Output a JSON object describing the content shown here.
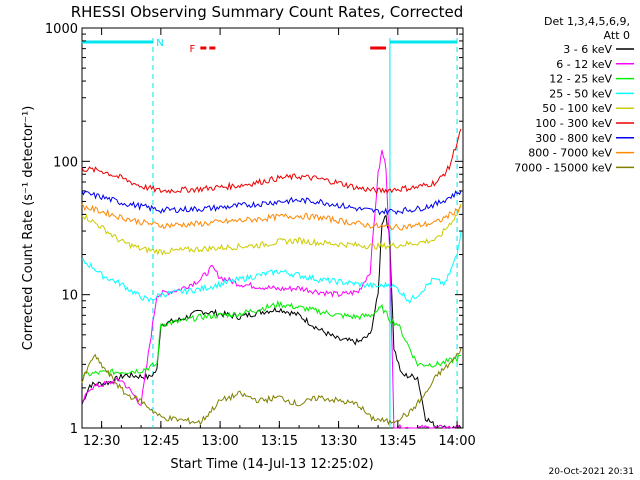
{
  "chart_data": {
    "type": "line",
    "title": "RHESSI Observing Summary Count Rates, Corrected",
    "xlabel": "Start Time (14-Jul-13 12:25:02)",
    "ylabel": "Corrected Count Rate (s⁻¹ detector⁻¹)",
    "xlim": [
      "12:25:02",
      "14:01:30"
    ],
    "ylim": [
      1,
      1000
    ],
    "y_scale": "log",
    "x_ticks": [
      "12:30",
      "12:45",
      "13:00",
      "13:15",
      "13:30",
      "13:45",
      "14:00"
    ],
    "y_ticks": [
      "1",
      "10",
      "100",
      "1000"
    ],
    "legend_title": "Det 1,3,4,5,6,9,\nAtt 0",
    "legend_placement": "right",
    "timestamp": "20-Oct-2021 20:31",
    "flags": [
      {
        "label": "N",
        "color": "#00e5ee",
        "segments": [
          [
            "12:25",
            "12:43"
          ],
          [
            "13:43",
            "14:00"
          ]
        ]
      },
      {
        "label": "F",
        "color": "#ee0000",
        "segments": [
          [
            "12:55",
            "12:59"
          ],
          [
            "13:38",
            "13:42"
          ]
        ]
      }
    ],
    "vlines": [
      "12:43",
      "13:43",
      "14:00"
    ],
    "series": [
      {
        "name": "3 - 6 keV",
        "color": "#000000",
        "points": [
          [
            "12:25",
            1.5
          ],
          [
            "12:27",
            2.1
          ],
          [
            "12:32",
            2.2
          ],
          [
            "12:36",
            2.5
          ],
          [
            "12:42",
            2.4
          ],
          [
            "12:44",
            2.7
          ],
          [
            "12:45",
            6.0
          ],
          [
            "12:50",
            6.5
          ],
          [
            "12:55",
            7.5
          ],
          [
            "13:00",
            7.2
          ],
          [
            "13:05",
            6.8
          ],
          [
            "13:10",
            7.4
          ],
          [
            "13:15",
            7.8
          ],
          [
            "13:20",
            7.0
          ],
          [
            "13:25",
            5.5
          ],
          [
            "13:30",
            4.6
          ],
          [
            "13:35",
            4.4
          ],
          [
            "13:38",
            5.0
          ],
          [
            "13:40",
            10.0
          ],
          [
            "13:41",
            35.0
          ],
          [
            "13:42",
            40.0
          ],
          [
            "13:43",
            25.0
          ],
          [
            "13:44",
            4.0
          ],
          [
            "13:46",
            2.5
          ],
          [
            "13:50",
            2.4
          ],
          [
            "13:52",
            1.2
          ],
          [
            "13:55",
            1.0
          ],
          [
            "13:58",
            1.0
          ],
          [
            "14:01",
            1.0
          ]
        ]
      },
      {
        "name": "6 - 12 keV",
        "color": "#ff00ff",
        "points": [
          [
            "12:25",
            1.5
          ],
          [
            "12:27",
            2.0
          ],
          [
            "12:35",
            2.3
          ],
          [
            "12:40",
            1.5
          ],
          [
            "12:44",
            10.0
          ],
          [
            "12:50",
            11.0
          ],
          [
            "12:55",
            13.0
          ],
          [
            "12:58",
            16.0
          ],
          [
            "13:00",
            13.5
          ],
          [
            "13:05",
            12.0
          ],
          [
            "13:10",
            11.5
          ],
          [
            "13:15",
            11.0
          ],
          [
            "13:20",
            11.2
          ],
          [
            "13:25",
            10.5
          ],
          [
            "13:30",
            10.0
          ],
          [
            "13:35",
            10.5
          ],
          [
            "13:38",
            15.0
          ],
          [
            "13:40",
            80.0
          ],
          [
            "13:41",
            120.0
          ],
          [
            "13:42",
            90.0
          ],
          [
            "13:43",
            20.0
          ],
          [
            "13:44",
            1.0
          ],
          [
            "14:01",
            1.0
          ]
        ]
      },
      {
        "name": "12 - 25 keV",
        "color": "#00ee00",
        "points": [
          [
            "12:25",
            2.5
          ],
          [
            "12:30",
            2.6
          ],
          [
            "12:40",
            2.7
          ],
          [
            "12:44",
            3.0
          ],
          [
            "12:45",
            6.0
          ],
          [
            "12:50",
            6.3
          ],
          [
            "12:55",
            6.8
          ],
          [
            "13:00",
            7.0
          ],
          [
            "13:05",
            7.2
          ],
          [
            "13:10",
            7.8
          ],
          [
            "13:15",
            8.5
          ],
          [
            "13:20",
            8.0
          ],
          [
            "13:25",
            7.5
          ],
          [
            "13:30",
            7.0
          ],
          [
            "13:35",
            6.8
          ],
          [
            "13:38",
            7.0
          ],
          [
            "13:41",
            8.0
          ],
          [
            "13:43",
            6.5
          ],
          [
            "13:45",
            6.0
          ],
          [
            "13:50",
            3.0
          ],
          [
            "13:55",
            3.0
          ],
          [
            "14:00",
            3.3
          ],
          [
            "14:01",
            3.5
          ]
        ]
      },
      {
        "name": "25 - 50 keV",
        "color": "#00ffff",
        "points": [
          [
            "12:25",
            18.0
          ],
          [
            "12:28",
            16.0
          ],
          [
            "12:30",
            14.0
          ],
          [
            "12:35",
            12.0
          ],
          [
            "12:39",
            10.0
          ],
          [
            "12:42",
            9.0
          ],
          [
            "12:45",
            10.0
          ],
          [
            "12:50",
            10.5
          ],
          [
            "12:55",
            11.0
          ],
          [
            "13:00",
            12.0
          ],
          [
            "13:05",
            13.0
          ],
          [
            "13:10",
            14.0
          ],
          [
            "13:15",
            15.0
          ],
          [
            "13:20",
            14.0
          ],
          [
            "13:25",
            13.0
          ],
          [
            "13:30",
            12.5
          ],
          [
            "13:35",
            12.0
          ],
          [
            "13:40",
            11.5
          ],
          [
            "13:43",
            12.0
          ],
          [
            "13:45",
            11.0
          ],
          [
            "13:48",
            9.0
          ],
          [
            "13:50",
            10.0
          ],
          [
            "13:54",
            13.0
          ],
          [
            "13:57",
            12.0
          ],
          [
            "14:00",
            20.0
          ],
          [
            "14:01",
            30.0
          ]
        ]
      },
      {
        "name": "50 - 100 keV",
        "color": "#cccc00",
        "points": [
          [
            "12:25",
            40.0
          ],
          [
            "12:30",
            32.0
          ],
          [
            "12:35",
            25.0
          ],
          [
            "12:40",
            22.0
          ],
          [
            "12:45",
            21.0
          ],
          [
            "12:50",
            21.5
          ],
          [
            "12:55",
            22.0
          ],
          [
            "13:00",
            22.5
          ],
          [
            "13:05",
            23.0
          ],
          [
            "13:10",
            23.5
          ],
          [
            "13:15",
            25.0
          ],
          [
            "13:20",
            25.5
          ],
          [
            "13:25",
            24.5
          ],
          [
            "13:30",
            24.0
          ],
          [
            "13:35",
            23.5
          ],
          [
            "13:40",
            23.0
          ],
          [
            "13:45",
            23.5
          ],
          [
            "13:50",
            24.5
          ],
          [
            "13:55",
            26.0
          ],
          [
            "14:00",
            40.0
          ],
          [
            "14:01",
            48.0
          ]
        ]
      },
      {
        "name": "100 - 300 keV",
        "color": "#ee0000",
        "points": [
          [
            "12:25",
            88.0
          ],
          [
            "12:30",
            85.0
          ],
          [
            "12:35",
            75.0
          ],
          [
            "12:40",
            65.0
          ],
          [
            "12:45",
            60.0
          ],
          [
            "12:50",
            61.0
          ],
          [
            "12:55",
            62.0
          ],
          [
            "13:00",
            64.0
          ],
          [
            "13:05",
            66.0
          ],
          [
            "13:10",
            70.0
          ],
          [
            "13:15",
            75.0
          ],
          [
            "13:20",
            77.0
          ],
          [
            "13:25",
            74.0
          ],
          [
            "13:30",
            69.0
          ],
          [
            "13:35",
            63.0
          ],
          [
            "13:40",
            60.0
          ],
          [
            "13:45",
            62.0
          ],
          [
            "13:50",
            64.0
          ],
          [
            "13:55",
            70.0
          ],
          [
            "13:58",
            90.0
          ],
          [
            "14:00",
            140.0
          ],
          [
            "14:01",
            175.0
          ]
        ]
      },
      {
        "name": "300 - 800 keV",
        "color": "#0000ee",
        "points": [
          [
            "12:25",
            58.0
          ],
          [
            "12:30",
            54.0
          ],
          [
            "12:35",
            49.0
          ],
          [
            "12:40",
            46.0
          ],
          [
            "12:45",
            43.0
          ],
          [
            "12:50",
            43.5
          ],
          [
            "12:55",
            44.0
          ],
          [
            "13:00",
            45.0
          ],
          [
            "13:05",
            46.5
          ],
          [
            "13:10",
            48.0
          ],
          [
            "13:15",
            50.0
          ],
          [
            "13:20",
            51.0
          ],
          [
            "13:25",
            50.0
          ],
          [
            "13:30",
            47.0
          ],
          [
            "13:35",
            44.0
          ],
          [
            "13:40",
            42.0
          ],
          [
            "13:45",
            42.5
          ],
          [
            "13:50",
            44.0
          ],
          [
            "13:55",
            48.0
          ],
          [
            "14:00",
            58.0
          ],
          [
            "14:01",
            60.0
          ]
        ]
      },
      {
        "name": "800 - 7000 keV",
        "color": "#ff8800",
        "points": [
          [
            "12:25",
            46.0
          ],
          [
            "12:30",
            42.0
          ],
          [
            "12:35",
            38.0
          ],
          [
            "12:40",
            35.0
          ],
          [
            "12:45",
            33.0
          ],
          [
            "12:50",
            33.5
          ],
          [
            "12:55",
            34.0
          ],
          [
            "13:00",
            35.0
          ],
          [
            "13:05",
            36.0
          ],
          [
            "13:10",
            37.0
          ],
          [
            "13:15",
            38.5
          ],
          [
            "13:20",
            39.0
          ],
          [
            "13:25",
            38.0
          ],
          [
            "13:30",
            36.0
          ],
          [
            "13:35",
            34.0
          ],
          [
            "13:40",
            32.5
          ],
          [
            "13:45",
            32.0
          ],
          [
            "13:50",
            33.0
          ],
          [
            "13:55",
            35.0
          ],
          [
            "14:00",
            43.0
          ],
          [
            "14:01",
            46.0
          ]
        ]
      },
      {
        "name": "7000 - 15000 keV",
        "color": "#808000",
        "points": [
          [
            "12:25",
            2.2
          ],
          [
            "12:28",
            3.5
          ],
          [
            "12:32",
            2.5
          ],
          [
            "12:36",
            1.8
          ],
          [
            "12:40",
            1.6
          ],
          [
            "12:45",
            1.2
          ],
          [
            "12:55",
            1.1
          ],
          [
            "13:00",
            1.6
          ],
          [
            "13:05",
            1.8
          ],
          [
            "13:10",
            1.6
          ],
          [
            "13:15",
            1.7
          ],
          [
            "13:20",
            1.5
          ],
          [
            "13:25",
            1.7
          ],
          [
            "13:30",
            1.6
          ],
          [
            "13:35",
            1.5
          ],
          [
            "13:38",
            1.2
          ],
          [
            "13:43",
            1.1
          ],
          [
            "13:48",
            1.3
          ],
          [
            "13:52",
            1.8
          ],
          [
            "13:55",
            2.5
          ],
          [
            "13:58",
            3.0
          ],
          [
            "14:00",
            3.5
          ],
          [
            "14:01",
            4.0
          ]
        ]
      }
    ]
  }
}
